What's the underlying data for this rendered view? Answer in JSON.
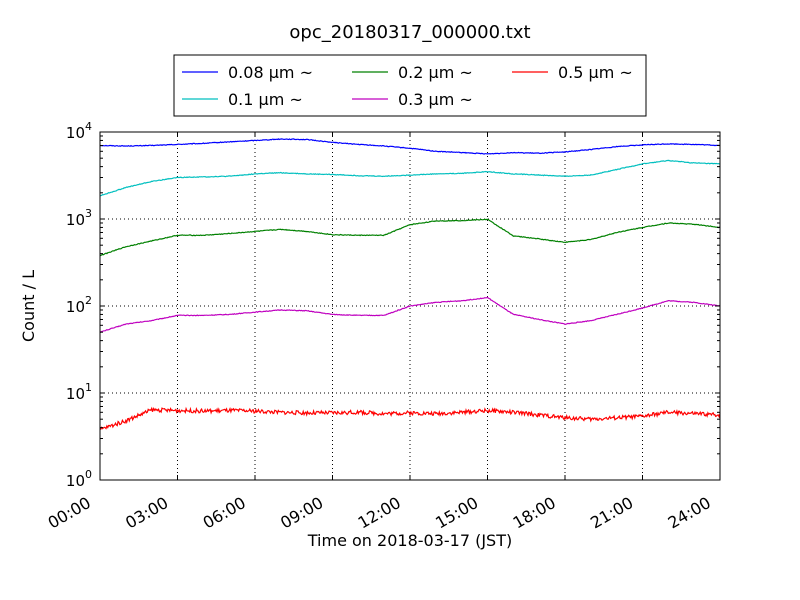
{
  "chart_data": {
    "type": "line",
    "title": "opc_20180317_000000.txt",
    "xlabel": "Time on 2018-03-17 (JST)",
    "ylabel": "Count / L",
    "yscale": "log",
    "ylim": [
      1,
      10000
    ],
    "xlim": [
      "00:00",
      "24:00"
    ],
    "grid": true,
    "legend_position": "top-center",
    "x_ticks": [
      "00:00",
      "03:00",
      "06:00",
      "09:00",
      "12:00",
      "15:00",
      "18:00",
      "21:00",
      "24:00"
    ],
    "y_ticks": [
      {
        "value": 1,
        "base": "10",
        "exp": "0"
      },
      {
        "value": 10,
        "base": "10",
        "exp": "1"
      },
      {
        "value": 100,
        "base": "10",
        "exp": "2"
      },
      {
        "value": 1000,
        "base": "10",
        "exp": "3"
      },
      {
        "value": 10000,
        "base": "10",
        "exp": "4"
      }
    ],
    "x": [
      "00:00",
      "01:00",
      "02:00",
      "03:00",
      "04:00",
      "05:00",
      "06:00",
      "07:00",
      "08:00",
      "09:00",
      "10:00",
      "11:00",
      "12:00",
      "13:00",
      "14:00",
      "15:00",
      "16:00",
      "17:00",
      "18:00",
      "19:00",
      "20:00",
      "21:00",
      "22:00",
      "23:00",
      "24:00"
    ],
    "series": [
      {
        "name": "0.08 μm ~",
        "color": "#0000ff",
        "values": [
          7000,
          6900,
          7000,
          7200,
          7400,
          7700,
          8000,
          8300,
          8200,
          7600,
          7200,
          6900,
          6500,
          6000,
          5800,
          5600,
          5800,
          5700,
          5900,
          6300,
          6800,
          7100,
          7300,
          7200,
          7000
        ]
      },
      {
        "name": "0.1 μm ~",
        "color": "#00bfbf",
        "values": [
          1850,
          2300,
          2700,
          3000,
          3050,
          3100,
          3300,
          3400,
          3300,
          3250,
          3150,
          3100,
          3200,
          3300,
          3350,
          3500,
          3300,
          3200,
          3100,
          3200,
          3700,
          4300,
          4700,
          4400,
          4300
        ]
      },
      {
        "name": "0.2 μm ~",
        "color": "#008000",
        "values": [
          380,
          480,
          560,
          650,
          650,
          680,
          720,
          760,
          720,
          660,
          650,
          650,
          860,
          950,
          960,
          990,
          640,
          590,
          540,
          580,
          700,
          800,
          900,
          870,
          800
        ]
      },
      {
        "name": "0.3 μm ~",
        "color": "#bf00bf",
        "values": [
          50,
          62,
          68,
          78,
          78,
          80,
          85,
          90,
          88,
          80,
          78,
          78,
          100,
          110,
          115,
          125,
          80,
          70,
          62,
          68,
          80,
          95,
          115,
          110,
          100
        ]
      },
      {
        "name": "0.5 μm ~",
        "color": "#ff0000",
        "values": [
          3.8,
          4.8,
          6.4,
          6.3,
          6.2,
          6.3,
          6.2,
          6.0,
          5.9,
          5.9,
          6.0,
          5.8,
          5.9,
          5.8,
          6.0,
          6.3,
          6.0,
          5.6,
          5.2,
          5.0,
          5.2,
          5.4,
          6.0,
          5.8,
          5.6
        ]
      }
    ]
  }
}
